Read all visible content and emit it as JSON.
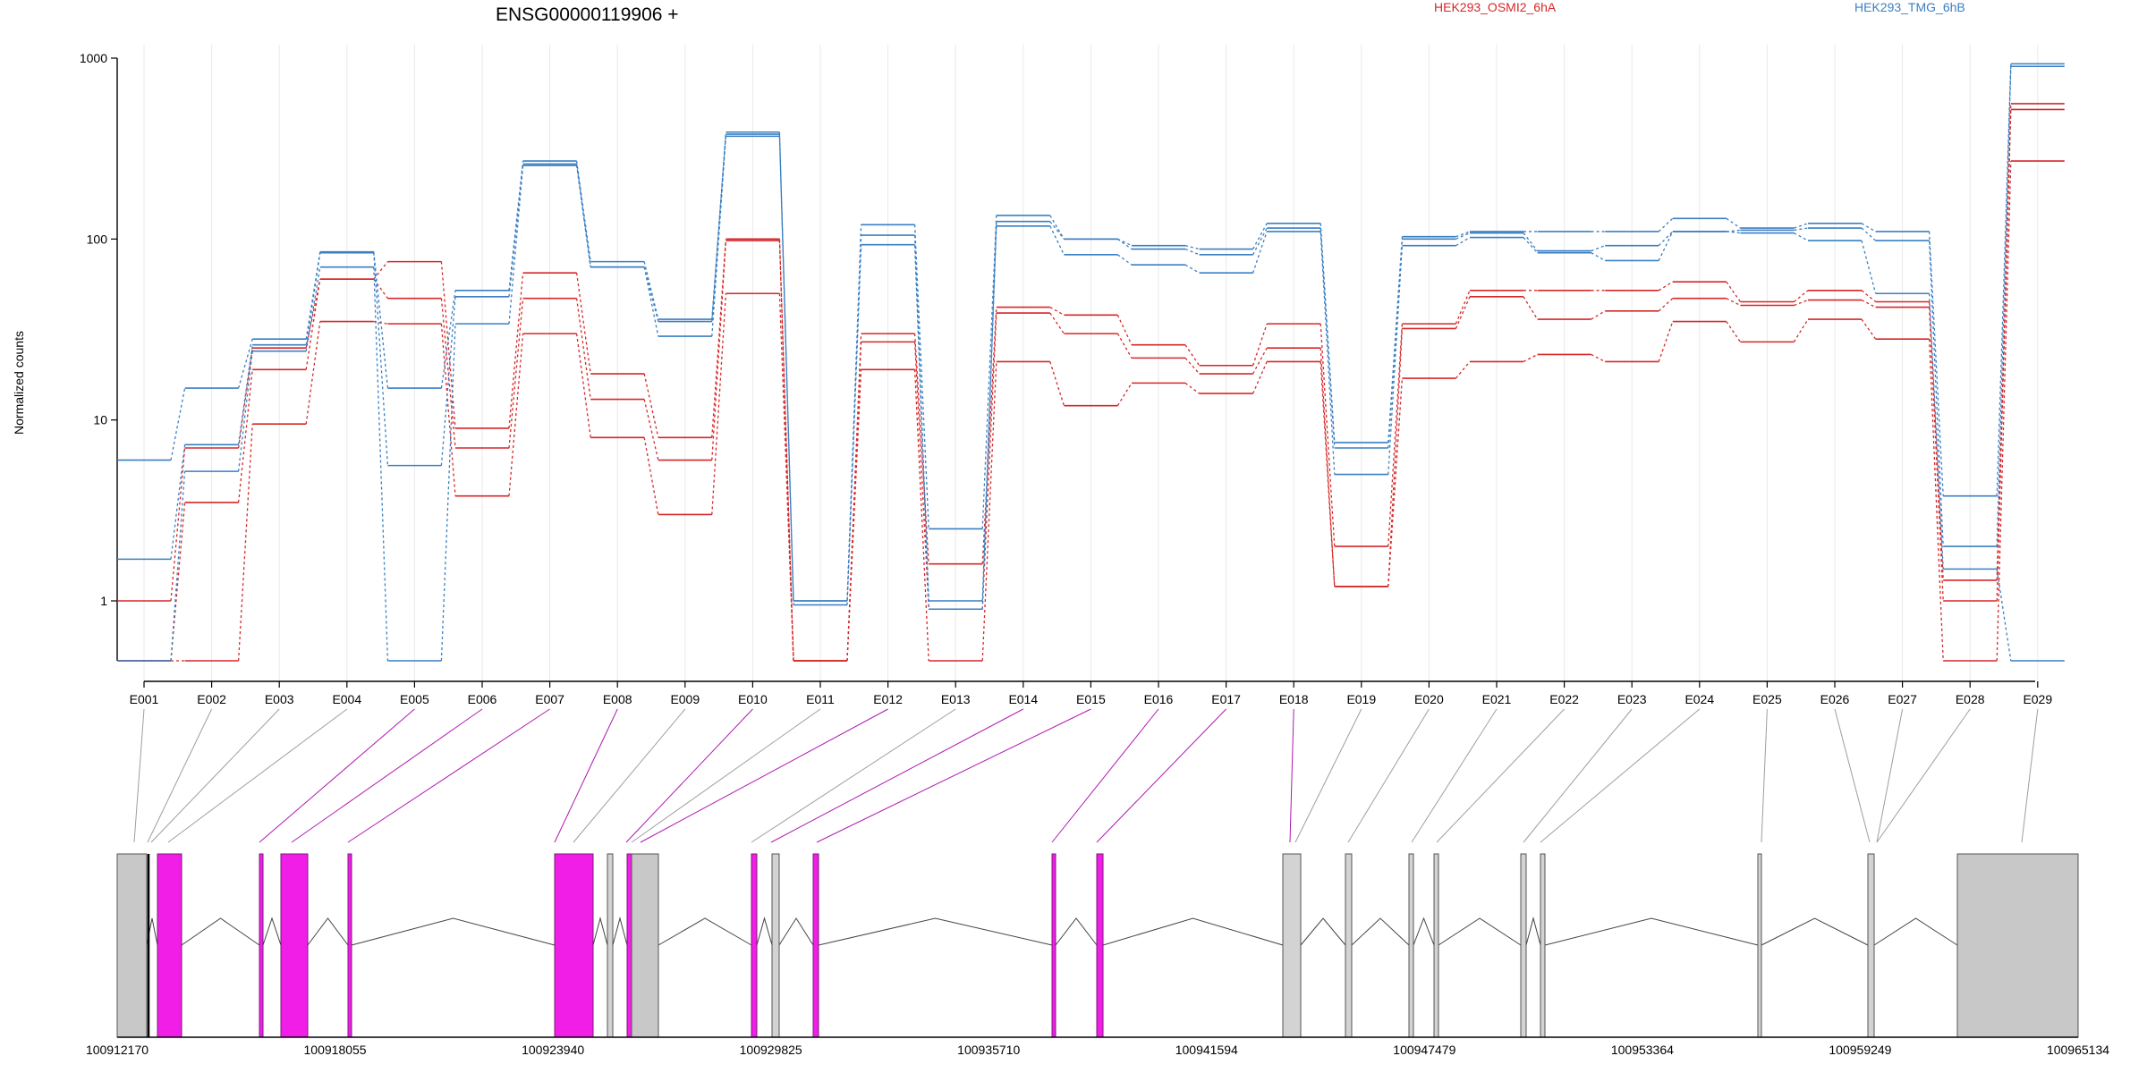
{
  "title": "ENSG00000119906 +",
  "colors": {
    "red": "#d62728",
    "blue": "#3a7fc1",
    "exon_highlight": "#f01ee6",
    "exon_plain": "#d3d3d3",
    "exon_plain_dark": "#c8c8c8",
    "link_gray": "#9e9e9e",
    "link_magenta": "#b01ab0"
  },
  "legend": [
    {
      "label": "HEK293_OSMI2_6hA",
      "color": "#d62728"
    },
    {
      "label": "HEK293_TMG_6hB",
      "color": "#3a7fc1"
    }
  ],
  "chart_data": {
    "type": "line",
    "title": "ENSG00000119906 +",
    "ylabel": "Normalized counts",
    "yscale": "log",
    "yticks": [
      1,
      10,
      100,
      1000
    ],
    "ytick_labels": [
      "1",
      "10",
      "100",
      "1000"
    ],
    "ylim": [
      0.5,
      1000
    ],
    "xlabel": "",
    "categories": [
      "E001",
      "E002",
      "E003",
      "E004",
      "E005",
      "E006",
      "E007",
      "E008",
      "E009",
      "E010",
      "E011",
      "E012",
      "E013",
      "E014",
      "E015",
      "E016",
      "E017",
      "E018",
      "E019",
      "E020",
      "E021",
      "E022",
      "E023",
      "E024",
      "E025",
      "E026",
      "E027",
      "E028",
      "E029"
    ],
    "series": [
      {
        "group": "red",
        "values": [
          1.0,
          7.0,
          25,
          60,
          75,
          9.0,
          65,
          18,
          8.0,
          100,
          0.5,
          30,
          1.6,
          42,
          38,
          26,
          20,
          34,
          2.0,
          34,
          52,
          52,
          52,
          58,
          45,
          52,
          45,
          1.3,
          560
        ]
      },
      {
        "group": "red",
        "values": [
          0.5,
          3.5,
          19,
          60,
          47,
          7.0,
          47,
          13,
          6.0,
          98,
          0.5,
          27,
          0.9,
          39,
          30,
          22,
          18,
          25,
          1.2,
          32,
          48,
          36,
          40,
          47,
          43,
          46,
          42,
          1.0,
          520
        ]
      },
      {
        "group": "red",
        "values": [
          0.5,
          0.5,
          9.5,
          35,
          34,
          3.8,
          30,
          8.0,
          3.0,
          50,
          0.5,
          19,
          0.5,
          21,
          12,
          16,
          14,
          21,
          1.2,
          17,
          21,
          23,
          21,
          35,
          27,
          36,
          28,
          0.5,
          270
        ]
      },
      {
        "group": "blue",
        "values": [
          6.0,
          15,
          28,
          85,
          15,
          52,
          270,
          75,
          36,
          390,
          1.0,
          120,
          2.5,
          135,
          100,
          92,
          88,
          122,
          7.5,
          103,
          110,
          110,
          110,
          130,
          115,
          122,
          110,
          3.8,
          930
        ]
      },
      {
        "group": "blue",
        "values": [
          1.7,
          7.3,
          26,
          84,
          5.6,
          48,
          260,
          70,
          35,
          380,
          1.0,
          105,
          1.0,
          125,
          100,
          88,
          82,
          115,
          7.0,
          100,
          108,
          86,
          92,
          110,
          112,
          115,
          98,
          2.0,
          900
        ]
      },
      {
        "group": "blue",
        "values": [
          0.5,
          5.2,
          24,
          70,
          0.5,
          34,
          255,
          70,
          29,
          370,
          0.95,
          93,
          0.9,
          118,
          82,
          72,
          65,
          110,
          5.0,
          92,
          102,
          84,
          76,
          110,
          108,
          98,
          50,
          1.5,
          0.5
        ]
      }
    ]
  },
  "gene_model": {
    "coordinate_labels": [
      "100912170",
      "100918055",
      "100923940",
      "100929825",
      "100935710",
      "100941594",
      "100947479",
      "100953364",
      "100959249",
      "100965134"
    ],
    "coord_min": 100912170,
    "coord_max": 100965134
  }
}
